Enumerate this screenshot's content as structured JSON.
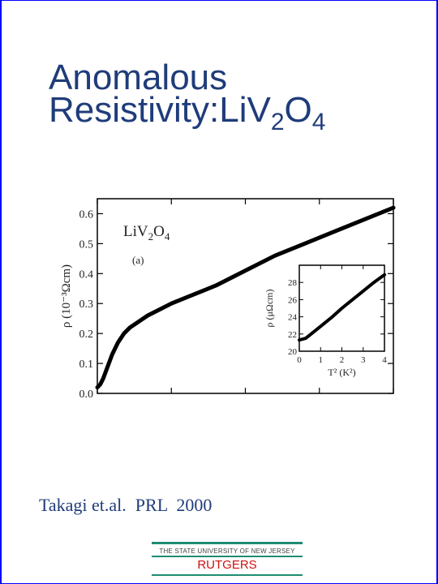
{
  "slide": {
    "title_line1": "Anomalous",
    "title_line2_prefix": "Resistivity:LiV",
    "title_sub1": "2",
    "title_mid": "O",
    "title_sub2": "4",
    "citation": "Takagi et.al.  PRL  2000",
    "colors": {
      "title": "#1f3c7a",
      "border": "#0000ff",
      "logo_rule": "#1e8c72",
      "logo_name": "#cc1111"
    }
  },
  "logo": {
    "university": "THE STATE UNIVERSITY OF NEW JERSEY",
    "name": "RUTGERS"
  },
  "chart_data": {
    "main": {
      "type": "line",
      "ylabel": "ρ  (10⁻³Ωcm)",
      "xlabel": "",
      "ylim": [
        0.0,
        0.65
      ],
      "yticks": [
        "0.0",
        "0.1",
        "0.2",
        "0.3",
        "0.4",
        "0.5",
        "0.6"
      ],
      "xlim": [
        0,
        1
      ],
      "annotation_compound": "LiV",
      "annotation_sub1": "2",
      "annotation_mid": "O",
      "annotation_sub2": "4",
      "panel_label": "(a)",
      "x_is_unlabeled": true,
      "series": [
        {
          "x": [
            0.0,
            0.01,
            0.02,
            0.035,
            0.05,
            0.07,
            0.09,
            0.11,
            0.14,
            0.17,
            0.2,
            0.25,
            0.3,
            0.4,
            0.5,
            0.6,
            0.7,
            0.8,
            0.9,
            1.0
          ],
          "values": [
            0.02,
            0.03,
            0.05,
            0.09,
            0.13,
            0.17,
            0.2,
            0.22,
            0.24,
            0.26,
            0.275,
            0.3,
            0.32,
            0.36,
            0.41,
            0.46,
            0.5,
            0.54,
            0.58,
            0.62
          ]
        }
      ]
    },
    "inset": {
      "type": "line",
      "ylabel": "ρ  (μΩcm)",
      "xlabel": "T² (K²)",
      "xlim": [
        0,
        4
      ],
      "ylim": [
        20,
        30
      ],
      "xticks": [
        "0",
        "1",
        "2",
        "3",
        "4"
      ],
      "yticks": [
        "20",
        "22",
        "24",
        "26",
        "28"
      ],
      "series": [
        {
          "x": [
            0.0,
            0.3,
            0.5,
            1.0,
            1.5,
            2.0,
            2.5,
            3.0,
            3.5,
            4.0
          ],
          "values": [
            21.3,
            21.5,
            21.9,
            22.9,
            23.9,
            25.0,
            26.0,
            27.0,
            28.0,
            28.9
          ]
        }
      ]
    }
  }
}
